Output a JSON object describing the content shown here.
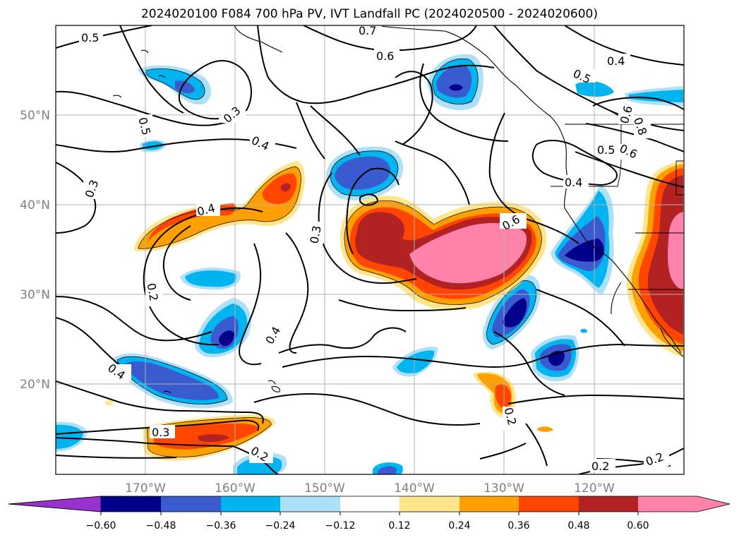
{
  "title": "2024020100 F084 700 hPa PV, IVT Landfall PC (2024020500 - 2024020600)",
  "map": {
    "lon_ticks": [
      "170°W",
      "160°W",
      "150°W",
      "140°W",
      "130°W",
      "120°W"
    ],
    "lat_ticks": [
      "50°N",
      "40°N",
      "30°N",
      "20°N"
    ],
    "contour_labels": [
      "0.5",
      "0.7",
      "0.6",
      "0.4",
      "0.5",
      "0.3",
      "0.5",
      "0.4",
      "0.3",
      "0.4",
      "0.3",
      "0.6",
      "0.2",
      "0.4",
      "0.4",
      "0.3",
      "0.2",
      "0.2",
      "0.2",
      "0.2",
      "0.4",
      "0.5",
      "0.6",
      "0.8",
      "0.6"
    ]
  },
  "colorbar": {
    "ticks": [
      "−0.60",
      "−0.48",
      "−0.36",
      "−0.24",
      "−0.12",
      "0.12",
      "0.24",
      "0.36",
      "0.48",
      "0.60"
    ],
    "colors": [
      "#9932cc",
      "#00008b",
      "#3a5bd0",
      "#00b4f0",
      "#aee0f8",
      "#ffffff",
      "#ffe68c",
      "#ffa000",
      "#ff4500",
      "#b22222",
      "#ff82aa"
    ],
    "extend": "both"
  }
}
